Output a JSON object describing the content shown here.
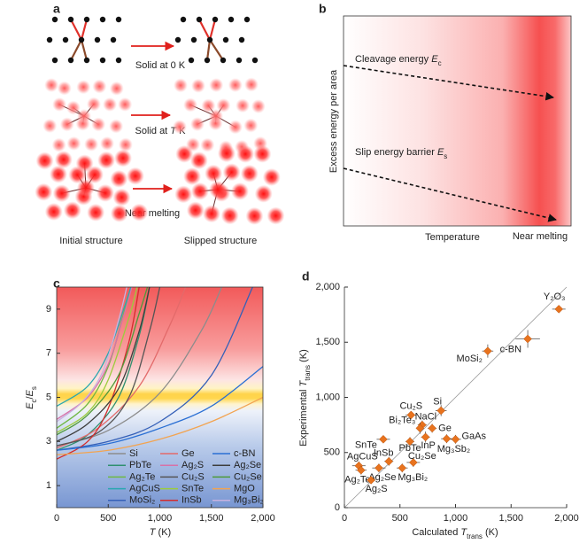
{
  "panel_a": {
    "letter": "a",
    "steps": [
      [
        {
          "text": "Solid at 0 K"
        }
      ],
      [
        {
          "text": "Solid at "
        },
        {
          "text": "T",
          "style": "italic"
        },
        {
          "text": " K"
        }
      ],
      [
        {
          "text": "Near melting"
        }
      ]
    ],
    "captions": [
      "Initial structure",
      "Slipped structure"
    ]
  },
  "panel_b": {
    "letter": "b",
    "ylabel": "Excess energy per area",
    "lines": [
      [
        {
          "text": "Cleavage energy "
        },
        {
          "text": "E",
          "style": "italic"
        },
        {
          "text": "c",
          "style": "sub"
        }
      ],
      [
        {
          "text": "Slip energy barrier "
        },
        {
          "text": "E",
          "style": "italic"
        },
        {
          "text": "s",
          "style": "sub"
        }
      ]
    ],
    "xlabel": "Temperature",
    "hot_label": "Near melting"
  },
  "chart_data": [
    {
      "type": "line",
      "panel_letter": "c",
      "xlabel": [
        {
          "text": "T",
          "style": "italic"
        },
        {
          "text": " (K)"
        }
      ],
      "ylabel": [
        {
          "text": "E",
          "style": "italic"
        },
        {
          "text": "c",
          "style": "sub"
        },
        {
          "text": "/"
        },
        {
          "text": "E",
          "style": "italic"
        },
        {
          "text": "s",
          "style": "sub"
        }
      ],
      "xlim": [
        0,
        2000
      ],
      "ylim": [
        0,
        10
      ],
      "xticks": [
        0,
        500,
        {
          "value": 1000,
          "label": "1,000"
        },
        {
          "value": 1500,
          "label": "1,500"
        },
        {
          "value": 2000,
          "label": "2,000"
        }
      ],
      "yticks": [
        1,
        3,
        5,
        7,
        9
      ],
      "series": [
        {
          "name": "Si",
          "color": "#8c8c8c",
          "x": [
            0,
            500,
            1000,
            1400,
            1600
          ],
          "values": [
            2.8,
            3.5,
            5.2,
            8.0,
            10
          ]
        },
        {
          "name": "PbTe",
          "color": "#2f8f6f",
          "x": [
            0,
            300,
            600,
            800,
            900
          ],
          "values": [
            2.6,
            3.3,
            5.0,
            7.8,
            10
          ]
        },
        {
          "name": "Ag₂Te",
          "color": "#6fb843",
          "x": [
            0,
            300,
            500,
            650,
            720
          ],
          "values": [
            3.6,
            4.7,
            6.4,
            8.8,
            10
          ]
        },
        {
          "name": "AgCuS",
          "color": "#2aa7b0",
          "x": [
            0,
            300,
            500,
            650,
            720
          ],
          "values": [
            4.6,
            5.5,
            7.0,
            9.0,
            10
          ]
        },
        {
          "name": "MoSi₂",
          "color": "#3560b8",
          "x": [
            0,
            500,
            1000,
            1500,
            1900
          ],
          "values": [
            2.6,
            3.0,
            3.9,
            6.0,
            10
          ]
        },
        {
          "name": "Ge",
          "color": "#e36a6a",
          "x": [
            0,
            400,
            800,
            1100,
            1250
          ],
          "values": [
            2.7,
            3.6,
            5.5,
            8.3,
            10
          ]
        },
        {
          "name": "Ag₂S",
          "color": "#d772a8",
          "x": [
            0,
            300,
            500,
            650,
            730
          ],
          "values": [
            4.0,
            5.0,
            6.5,
            8.7,
            10
          ]
        },
        {
          "name": "Cu₂S",
          "color": "#555555",
          "x": [
            0,
            400,
            700,
            900,
            1000
          ],
          "values": [
            2.8,
            3.4,
            5.0,
            8.0,
            10
          ]
        },
        {
          "name": "SnTe",
          "color": "#9ccc3c",
          "x": [
            0,
            300,
            500,
            700,
            780
          ],
          "values": [
            3.4,
            4.3,
            5.8,
            8.6,
            10
          ]
        },
        {
          "name": "InSb",
          "color": "#d42c2c",
          "x": [
            0,
            300,
            500,
            700,
            800
          ],
          "values": [
            2.2,
            3.0,
            4.5,
            7.5,
            10
          ]
        },
        {
          "name": "c-BN",
          "color": "#2a6fd4",
          "x": [
            0,
            500,
            1000,
            1500,
            2000
          ],
          "values": [
            2.6,
            2.9,
            3.6,
            4.6,
            6.4
          ]
        },
        {
          "name": "Ag₂Se",
          "color": "#3d3d3d",
          "x": [
            0,
            300,
            600,
            800,
            900
          ],
          "values": [
            3.0,
            3.8,
            5.4,
            8.0,
            10
          ]
        },
        {
          "name": "Cu₂Se",
          "color": "#4f9a3a",
          "x": [
            0,
            300,
            600,
            800,
            880
          ],
          "values": [
            3.3,
            4.2,
            6.0,
            8.8,
            10
          ]
        },
        {
          "name": "MgO",
          "color": "#f2a451",
          "x": [
            0,
            500,
            1000,
            1500,
            2000
          ],
          "values": [
            2.4,
            2.6,
            3.1,
            3.9,
            5.0
          ]
        },
        {
          "name": "Mg₃Bi₂",
          "color": "#c8b2e0",
          "x": [
            0,
            250,
            450,
            600,
            680
          ],
          "values": [
            3.9,
            4.8,
            6.2,
            8.5,
            10
          ]
        }
      ]
    },
    {
      "type": "scatter",
      "panel_letter": "d",
      "xlabel": [
        {
          "text": "Calculated "
        },
        {
          "text": "T",
          "style": "italic"
        },
        {
          "text": "trans",
          "style": "sub"
        },
        {
          "text": " (K)"
        }
      ],
      "ylabel": [
        {
          "text": "Experimental "
        },
        {
          "text": "T",
          "style": "italic"
        },
        {
          "text": "trans",
          "style": "sub"
        },
        {
          "text": " (K)"
        }
      ],
      "xlim": [
        0,
        2000
      ],
      "ylim": [
        0,
        2000
      ],
      "xticks": [
        0,
        500,
        {
          "value": 1000,
          "label": "1,000"
        },
        {
          "value": 1500,
          "label": "1,500"
        },
        {
          "value": 2000,
          "label": "2,000"
        }
      ],
      "yticks": [
        0,
        500,
        {
          "value": 1000,
          "label": "1,000"
        },
        {
          "value": 1500,
          "label": "1,500"
        },
        {
          "value": 2000,
          "label": "2,000"
        }
      ],
      "color": "#e8731e",
      "point_labels": [
        "Y₂O₃",
        "c-BN",
        "MoSi₂",
        "Si",
        "Cu₂S",
        "NaCl",
        "Ge",
        "Bi₂Te₃",
        "GaAs",
        "Mg₃Sb₂",
        "InP",
        "PbTe",
        "SnTe",
        "InSb",
        "Cu₂Se",
        "AgCuS",
        "Ag₂Te",
        "Ag₂Se",
        "Mg₃Bi₂",
        "Ag₂S"
      ],
      "x": [
        1930,
        1650,
        1290,
        870,
        600,
        700,
        790,
        680,
        1000,
        920,
        730,
        590,
        350,
        400,
        620,
        130,
        150,
        310,
        520,
        240
      ],
      "values": [
        1800,
        1530,
        1420,
        880,
        840,
        750,
        720,
        720,
        620,
        625,
        640,
        600,
        620,
        420,
        410,
        380,
        340,
        360,
        360,
        250
      ],
      "xerr": [
        60,
        110,
        50,
        50,
        50,
        40,
        40,
        30,
        50,
        50,
        40,
        40,
        60,
        40,
        60,
        60,
        50,
        60,
        50,
        40
      ],
      "yerr": [
        20,
        80,
        60,
        50,
        20,
        40,
        40,
        50,
        40,
        40,
        50,
        40,
        30,
        40,
        40,
        40,
        40,
        40,
        40,
        30
      ]
    }
  ]
}
